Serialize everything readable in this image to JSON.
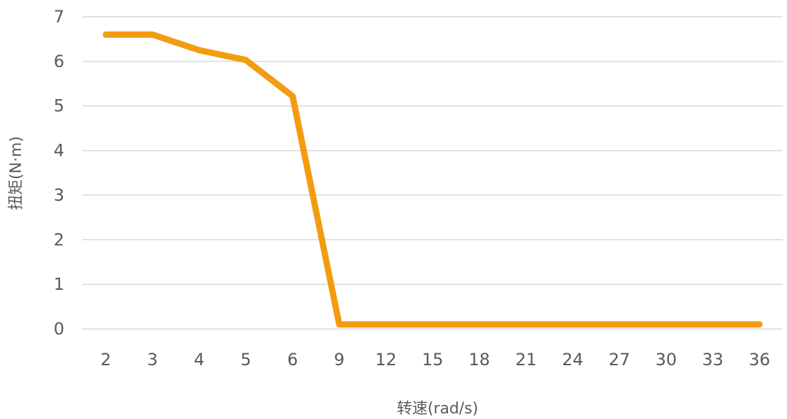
{
  "chart_data": {
    "type": "line",
    "categories": [
      "2",
      "3",
      "4",
      "5",
      "6",
      "9",
      "12",
      "15",
      "18",
      "21",
      "24",
      "27",
      "30",
      "33",
      "36"
    ],
    "series": [
      {
        "values": [
          6.6,
          6.6,
          6.25,
          6.03,
          5.22,
          0.1,
          0.1,
          0.1,
          0.1,
          0.1,
          0.1,
          0.1,
          0.1,
          0.1,
          0.1
        ],
        "color": "#F39C12"
      }
    ],
    "xlabel": "转速(rad/s)",
    "ylabel": "扭矩(N·m)",
    "ylim": [
      0,
      7
    ],
    "yticks": [
      "0",
      "1",
      "2",
      "3",
      "4",
      "5",
      "6",
      "7"
    ],
    "grid": true,
    "legend": "none"
  }
}
